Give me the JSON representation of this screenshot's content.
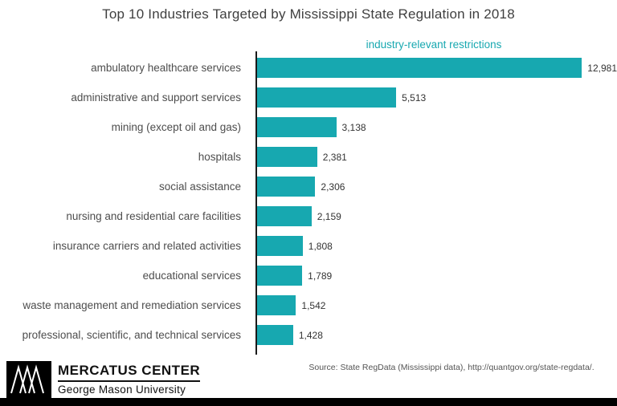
{
  "title": "Top 10 Industries Targeted by Mississippi State Regulation in 2018",
  "source": "Source: State RegData (Mississippi data), http://quantgov.org/state-regdata/.",
  "footer": {
    "org": "MERCATUS CENTER",
    "university": "George Mason University"
  },
  "colors": {
    "bar": "#17a8b0",
    "accent": "#17a8b0",
    "title": "#3f3f3f",
    "axis": "#1a1a1a"
  },
  "chart_data": {
    "type": "bar",
    "orientation": "horizontal",
    "title": "Top 10 Industries Targeted by Mississippi State Regulation in 2018",
    "legend": "industry-relevant restrictions",
    "xlabel": "",
    "ylabel": "",
    "xlim": [
      0,
      14270
    ],
    "grid": false,
    "categories": [
      "ambulatory healthcare services",
      "administrative and support services",
      "mining (except oil and gas)",
      "hospitals",
      "social assistance",
      "nursing and residential care facilities",
      "insurance carriers and related activities",
      "educational services",
      "waste management and remediation services",
      "professional, scientific, and technical services"
    ],
    "values": [
      12981,
      5513,
      3138,
      2381,
      2306,
      2159,
      1808,
      1789,
      1542,
      1428
    ],
    "value_labels": [
      "12,981",
      "5,513",
      "3,138",
      "2,381",
      "2,306",
      "2,159",
      "1,808",
      "1,789",
      "1,542",
      "1,428"
    ]
  }
}
